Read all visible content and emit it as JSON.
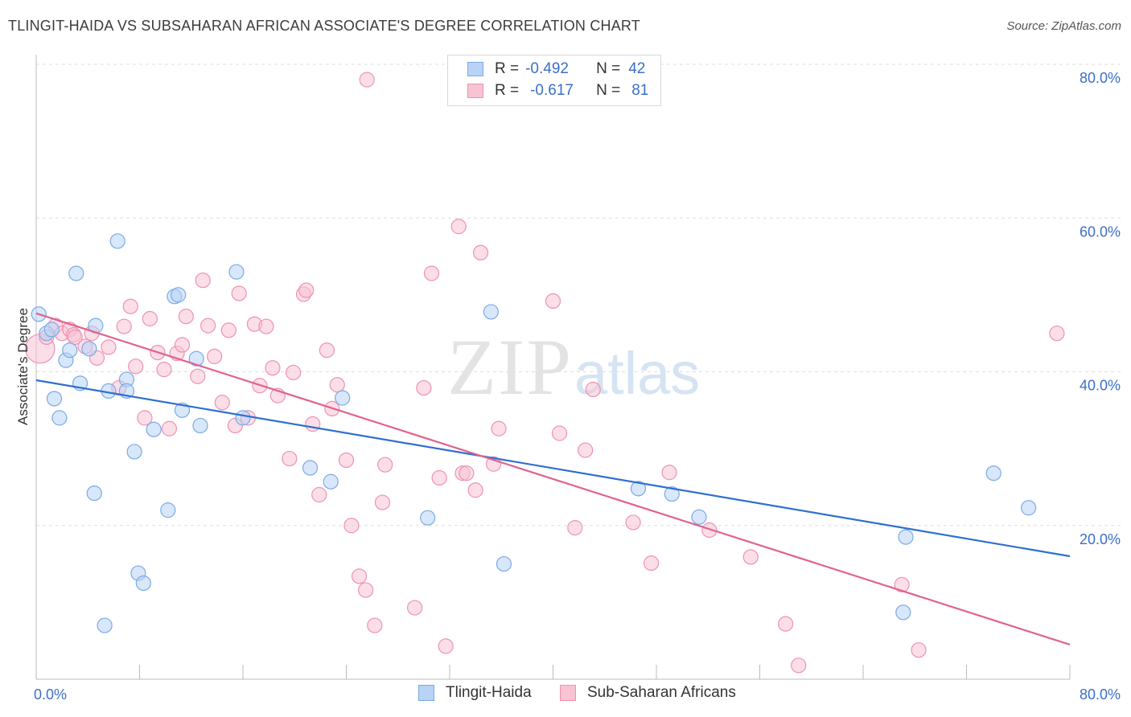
{
  "header": {
    "title": "TLINGIT-HAIDA VS SUBSAHARAN AFRICAN ASSOCIATE'S DEGREE CORRELATION CHART",
    "source": "Source: ZipAtlas.com"
  },
  "watermark": {
    "zip": "ZIP",
    "atlas": "atlas"
  },
  "legend": {
    "rows": [
      {
        "r_label": "R =",
        "r_value": "-0.492",
        "n_label": "N =",
        "n_value": "42"
      },
      {
        "r_label": "R =",
        "r_value": "-0.617",
        "n_label": "N =",
        "n_value": "81"
      }
    ]
  },
  "bottom_legend": {
    "series1": "Tlingit-Haida",
    "series2": "Sub-Saharan Africans"
  },
  "colors": {
    "blue_fill": "#b8d3f5",
    "blue_stroke": "#7aaae6",
    "blue_line": "#2f6fcf",
    "pink_fill": "#f8c3d3",
    "pink_stroke": "#ee92b0",
    "pink_line": "#e0628e",
    "axis_label": "#3b6fc9",
    "grid": "#dddddd"
  },
  "chart_data": {
    "type": "scatter",
    "title": "TLINGIT-HAIDA VS SUBSAHARAN AFRICAN ASSOCIATE'S DEGREE CORRELATION CHART",
    "xlabel": "",
    "ylabel": "Associate's Degree",
    "xlim": [
      0,
      80
    ],
    "ylim": [
      0,
      80
    ],
    "x_tick_labels": [
      "0.0%",
      "80.0%"
    ],
    "y_tick_labels": [
      "20.0%",
      "40.0%",
      "60.0%",
      "80.0%"
    ],
    "y_ticks": [
      20,
      40,
      60,
      80
    ],
    "grid": true,
    "legend_position": "top-center",
    "series": [
      {
        "name": "Tlingit-Haida",
        "r": -0.492,
        "n": 42,
        "trend": {
          "x": [
            0,
            80
          ],
          "y": [
            38.9,
            16.0
          ]
        },
        "points": [
          [
            0.2,
            47.5
          ],
          [
            0.8,
            45.0
          ],
          [
            1.2,
            45.5
          ],
          [
            1.4,
            36.5
          ],
          [
            1.8,
            34.0
          ],
          [
            2.3,
            41.5
          ],
          [
            2.6,
            42.8
          ],
          [
            3.1,
            52.8
          ],
          [
            3.4,
            38.5
          ],
          [
            4.1,
            43.0
          ],
          [
            4.5,
            24.2
          ],
          [
            4.6,
            46.0
          ],
          [
            5.3,
            7.0
          ],
          [
            5.6,
            37.5
          ],
          [
            6.3,
            57.0
          ],
          [
            7.0,
            39.0
          ],
          [
            7.0,
            37.5
          ],
          [
            7.6,
            29.6
          ],
          [
            7.9,
            13.8
          ],
          [
            8.3,
            12.5
          ],
          [
            10.2,
            22.0
          ],
          [
            9.1,
            32.5
          ],
          [
            10.7,
            49.8
          ],
          [
            11.0,
            50.0
          ],
          [
            11.3,
            35.0
          ],
          [
            12.4,
            41.7
          ],
          [
            12.7,
            33.0
          ],
          [
            15.5,
            53.0
          ],
          [
            16.0,
            34.0
          ],
          [
            21.2,
            27.5
          ],
          [
            22.8,
            25.7
          ],
          [
            23.7,
            36.6
          ],
          [
            30.3,
            21.0
          ],
          [
            35.2,
            47.8
          ],
          [
            36.2,
            15.0
          ],
          [
            46.6,
            24.8
          ],
          [
            49.2,
            24.1
          ],
          [
            51.3,
            21.1
          ],
          [
            67.1,
            8.7
          ],
          [
            67.3,
            18.5
          ],
          [
            74.1,
            26.8
          ],
          [
            76.8,
            22.3
          ]
        ]
      },
      {
        "name": "Sub-Saharan Africans",
        "r": -0.617,
        "n": 81,
        "trend": {
          "x": [
            0,
            80
          ],
          "y": [
            47.6,
            4.5
          ]
        },
        "points": [
          [
            0.3,
            43.0
          ],
          [
            0.8,
            44.5
          ],
          [
            1.5,
            46.0
          ],
          [
            2.0,
            45.0
          ],
          [
            2.6,
            45.5
          ],
          [
            2.9,
            44.8
          ],
          [
            3.0,
            44.5
          ],
          [
            3.8,
            43.3
          ],
          [
            4.3,
            45.0
          ],
          [
            4.7,
            41.8
          ],
          [
            5.6,
            43.2
          ],
          [
            6.4,
            37.9
          ],
          [
            6.8,
            45.9
          ],
          [
            7.3,
            48.5
          ],
          [
            7.7,
            40.7
          ],
          [
            8.4,
            34.0
          ],
          [
            8.8,
            46.9
          ],
          [
            9.4,
            42.5
          ],
          [
            9.9,
            40.3
          ],
          [
            10.3,
            32.6
          ],
          [
            10.9,
            42.4
          ],
          [
            11.3,
            43.5
          ],
          [
            11.6,
            47.2
          ],
          [
            12.5,
            39.4
          ],
          [
            12.9,
            51.9
          ],
          [
            13.3,
            46.0
          ],
          [
            13.8,
            42.0
          ],
          [
            14.4,
            36.0
          ],
          [
            14.9,
            45.4
          ],
          [
            15.4,
            33.0
          ],
          [
            15.7,
            50.2
          ],
          [
            16.4,
            34.0
          ],
          [
            16.9,
            46.2
          ],
          [
            17.3,
            38.2
          ],
          [
            17.8,
            45.9
          ],
          [
            18.3,
            40.5
          ],
          [
            18.7,
            36.9
          ],
          [
            19.6,
            28.7
          ],
          [
            19.9,
            39.9
          ],
          [
            20.7,
            50.1
          ],
          [
            20.9,
            50.6
          ],
          [
            21.4,
            33.2
          ],
          [
            21.9,
            24.0
          ],
          [
            22.5,
            42.8
          ],
          [
            22.9,
            35.2
          ],
          [
            23.3,
            38.3
          ],
          [
            24.0,
            28.5
          ],
          [
            24.4,
            20.0
          ],
          [
            25.0,
            13.4
          ],
          [
            25.5,
            11.6
          ],
          [
            25.6,
            78.0
          ],
          [
            26.2,
            7.0
          ],
          [
            26.8,
            23.0
          ],
          [
            27.0,
            27.9
          ],
          [
            29.3,
            9.3
          ],
          [
            30.0,
            37.9
          ],
          [
            30.6,
            52.8
          ],
          [
            31.2,
            26.2
          ],
          [
            31.7,
            4.3
          ],
          [
            32.7,
            58.9
          ],
          [
            33.0,
            26.8
          ],
          [
            33.3,
            26.8
          ],
          [
            34.0,
            24.6
          ],
          [
            34.4,
            55.5
          ],
          [
            35.4,
            28.0
          ],
          [
            35.8,
            32.6
          ],
          [
            40.0,
            49.2
          ],
          [
            40.5,
            32.0
          ],
          [
            41.7,
            19.7
          ],
          [
            42.5,
            29.8
          ],
          [
            43.1,
            37.7
          ],
          [
            46.2,
            20.4
          ],
          [
            47.6,
            15.1
          ],
          [
            49.0,
            26.9
          ],
          [
            52.1,
            19.4
          ],
          [
            55.3,
            15.9
          ],
          [
            58.0,
            7.2
          ],
          [
            59.0,
            1.8
          ],
          [
            67.0,
            12.3
          ],
          [
            68.3,
            3.8
          ],
          [
            79.0,
            45.0
          ]
        ]
      }
    ]
  }
}
